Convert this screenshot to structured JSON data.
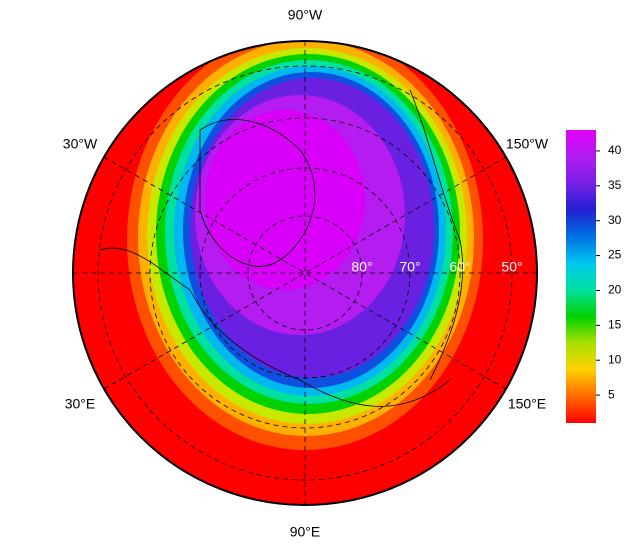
{
  "map": {
    "longitude_labels": [
      "90°W",
      "30°W",
      "150°W",
      "30°E",
      "150°E",
      "90°E"
    ],
    "latitude_labels": [
      "80°",
      "70°",
      "60°",
      "50°"
    ]
  },
  "colorbar": {
    "lim": [
      1,
      43
    ],
    "ticks": [
      5,
      10,
      15,
      20,
      25,
      30,
      35,
      40
    ],
    "colors": [
      "#ff0000",
      "#ff6a00",
      "#ffd000",
      "#a8e000",
      "#00d200",
      "#00e0a0",
      "#00c8f0",
      "#0070e0",
      "#2020d0",
      "#7a20e8",
      "#b01cf0",
      "#e000f8"
    ]
  }
}
